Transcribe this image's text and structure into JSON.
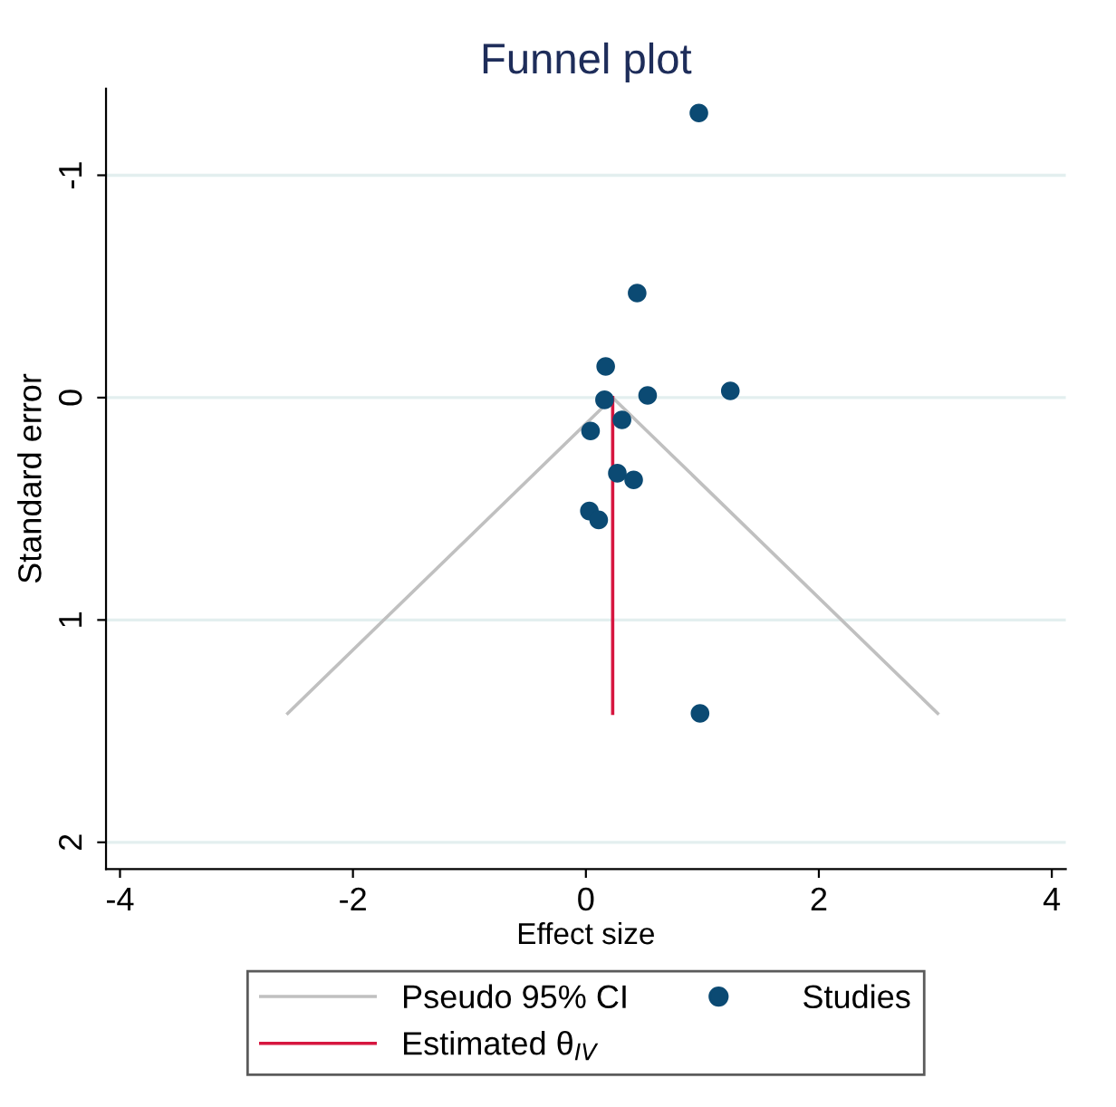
{
  "chart_data": {
    "type": "scatter",
    "title": "Funnel plot",
    "xlabel": "Effect size",
    "ylabel": "Standard error",
    "xlim": [
      -4.12,
      4.12
    ],
    "xticks": [
      -4,
      -2,
      0,
      2,
      4
    ],
    "ylim": [
      2.12,
      -1.39
    ],
    "yticks": [
      -1,
      0,
      1,
      2
    ],
    "grid": "y",
    "legend": "bottom",
    "series": [
      {
        "name": "Pseudo 95% CI",
        "type": "line",
        "color": "#c0c0c0",
        "marker": "none",
        "x": [
          -2.56,
          0.23,
          3.02
        ],
        "values": [
          1.42,
          0,
          1.42
        ]
      },
      {
        "name": "Estimated θ$_{IV}$",
        "type": "line",
        "color": "#d6163f",
        "marker": "none",
        "x": [
          0.23,
          0.23
        ],
        "values": [
          0,
          1.42
        ]
      },
      {
        "name": "Studies",
        "color": "#0b4a73",
        "marker": "circle",
        "x": [
          0.97,
          0.44,
          0.17,
          0.16,
          0.53,
          1.24,
          0.31,
          0.04,
          0.27,
          0.41,
          0.03,
          0.11,
          0.98
        ],
        "values": [
          -1.28,
          -0.47,
          -0.14,
          0.01,
          -0.01,
          -0.03,
          0.1,
          0.15,
          0.34,
          0.37,
          0.51,
          0.55,
          1.42
        ]
      }
    ]
  }
}
